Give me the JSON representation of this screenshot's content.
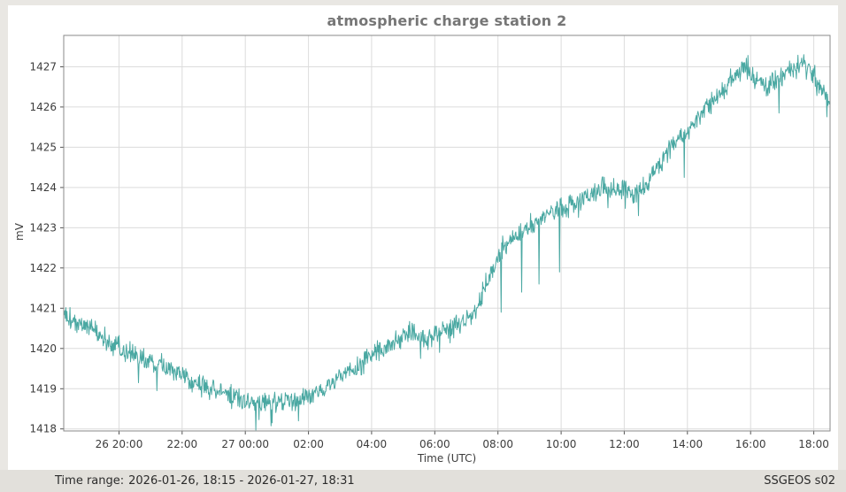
{
  "title": "atmospheric charge station 2",
  "status_bar": {
    "time_range_label": "Time range:",
    "time_range_value": "2026-01-26, 18:15 - 2026-01-27, 18:31",
    "station_id": "SSGEOS s02"
  },
  "colors": {
    "line": "#4aa8a2",
    "grid": "#dcdcdc",
    "frame": "#8a8a8a",
    "tick": "#555555",
    "tick_text": "#3c3c3c",
    "title_text": "#767676",
    "figure_bg": "#ffffff",
    "outer_bg": "#e9e7e3",
    "status_bar_bg": "#e2e0db"
  },
  "chart_data": {
    "type": "line",
    "title": "atmospheric charge station 2",
    "xlabel": "Time (UTC)",
    "ylabel": "mV",
    "grid": true,
    "legend": "none",
    "x_domain_hours": [
      18.25,
      42.5167
    ],
    "ylim": [
      1417.95,
      1427.78
    ],
    "yticks": [
      1418,
      1419,
      1420,
      1421,
      1422,
      1423,
      1424,
      1425,
      1426,
      1427
    ],
    "xticks": [
      {
        "hour": 20,
        "label": "26 20:00"
      },
      {
        "hour": 22,
        "label": "22:00"
      },
      {
        "hour": 24,
        "label": "27 00:00"
      },
      {
        "hour": 26,
        "label": "02:00"
      },
      {
        "hour": 28,
        "label": "04:00"
      },
      {
        "hour": 30,
        "label": "06:00"
      },
      {
        "hour": 32,
        "label": "08:00"
      },
      {
        "hour": 34,
        "label": "10:00"
      },
      {
        "hour": 36,
        "label": "12:00"
      },
      {
        "hour": 38,
        "label": "14:00"
      },
      {
        "hour": 40,
        "label": "16:00"
      },
      {
        "hour": 42,
        "label": "18:00"
      }
    ],
    "line_color": "#4aa8a2",
    "noise_amplitude_mV": 0.13,
    "sample_interval_minutes": 1,
    "trend_points": [
      {
        "t": "26 18:15",
        "hour": 18.25,
        "mV": 1420.9
      },
      {
        "t": "26 18:36",
        "hour": 18.6,
        "mV": 1420.65
      },
      {
        "t": "26 19:00",
        "hour": 19.0,
        "mV": 1420.55
      },
      {
        "t": "26 19:30",
        "hour": 19.5,
        "mV": 1420.3
      },
      {
        "t": "26 20:00",
        "hour": 20.0,
        "mV": 1420.0
      },
      {
        "t": "26 20:30",
        "hour": 20.5,
        "mV": 1419.85
      },
      {
        "t": "26 21:00",
        "hour": 21.0,
        "mV": 1419.6
      },
      {
        "t": "26 21:30",
        "hour": 21.5,
        "mV": 1419.5
      },
      {
        "t": "26 22:00",
        "hour": 22.0,
        "mV": 1419.35
      },
      {
        "t": "26 22:30",
        "hour": 22.5,
        "mV": 1419.15
      },
      {
        "t": "26 23:00",
        "hour": 23.0,
        "mV": 1418.95
      },
      {
        "t": "26 23:30",
        "hour": 23.5,
        "mV": 1418.85
      },
      {
        "t": "27 00:00",
        "hour": 24.0,
        "mV": 1418.75
      },
      {
        "t": "27 00:30",
        "hour": 24.5,
        "mV": 1418.7
      },
      {
        "t": "27 01:00",
        "hour": 25.0,
        "mV": 1418.68
      },
      {
        "t": "27 01:30",
        "hour": 25.5,
        "mV": 1418.72
      },
      {
        "t": "27 02:00",
        "hour": 26.0,
        "mV": 1418.85
      },
      {
        "t": "27 02:30",
        "hour": 26.5,
        "mV": 1419.05
      },
      {
        "t": "27 03:00",
        "hour": 27.0,
        "mV": 1419.3
      },
      {
        "t": "27 03:30",
        "hour": 27.5,
        "mV": 1419.5
      },
      {
        "t": "27 04:00",
        "hour": 28.0,
        "mV": 1419.9
      },
      {
        "t": "27 04:30",
        "hour": 28.5,
        "mV": 1420.1
      },
      {
        "t": "27 05:00",
        "hour": 29.0,
        "mV": 1420.3
      },
      {
        "t": "27 05:21",
        "hour": 29.35,
        "mV": 1420.45
      },
      {
        "t": "27 05:45",
        "hour": 29.75,
        "mV": 1420.15
      },
      {
        "t": "27 06:06",
        "hour": 30.1,
        "mV": 1420.4
      },
      {
        "t": "27 06:30",
        "hour": 30.5,
        "mV": 1420.55
      },
      {
        "t": "27 07:00",
        "hour": 31.0,
        "mV": 1420.65
      },
      {
        "t": "27 07:21",
        "hour": 31.35,
        "mV": 1421.05
      },
      {
        "t": "27 07:42",
        "hour": 31.7,
        "mV": 1421.7
      },
      {
        "t": "27 08:00",
        "hour": 32.0,
        "mV": 1422.3
      },
      {
        "t": "27 08:21",
        "hour": 32.35,
        "mV": 1422.7
      },
      {
        "t": "27 08:42",
        "hour": 32.7,
        "mV": 1422.85
      },
      {
        "t": "27 09:00",
        "hour": 33.0,
        "mV": 1423.0
      },
      {
        "t": "27 09:30",
        "hour": 33.5,
        "mV": 1423.3
      },
      {
        "t": "27 10:00",
        "hour": 34.0,
        "mV": 1423.5
      },
      {
        "t": "27 10:30",
        "hour": 34.5,
        "mV": 1423.6
      },
      {
        "t": "27 11:00",
        "hour": 35.0,
        "mV": 1423.9
      },
      {
        "t": "27 11:30",
        "hour": 35.5,
        "mV": 1424.0
      },
      {
        "t": "27 12:00",
        "hour": 36.0,
        "mV": 1423.95
      },
      {
        "t": "27 12:21",
        "hour": 36.35,
        "mV": 1423.85
      },
      {
        "t": "27 12:42",
        "hour": 36.7,
        "mV": 1424.1
      },
      {
        "t": "27 13:00",
        "hour": 37.0,
        "mV": 1424.45
      },
      {
        "t": "27 13:30",
        "hour": 37.5,
        "mV": 1425.0
      },
      {
        "t": "27 14:00",
        "hour": 38.0,
        "mV": 1425.4
      },
      {
        "t": "27 14:30",
        "hour": 38.5,
        "mV": 1425.95
      },
      {
        "t": "27 15:00",
        "hour": 39.0,
        "mV": 1426.3
      },
      {
        "t": "27 15:30",
        "hour": 39.5,
        "mV": 1426.8
      },
      {
        "t": "27 15:51",
        "hour": 39.85,
        "mV": 1427.0
      },
      {
        "t": "27 16:12",
        "hour": 40.2,
        "mV": 1426.65
      },
      {
        "t": "27 16:30",
        "hour": 40.5,
        "mV": 1426.5
      },
      {
        "t": "27 17:00",
        "hour": 41.0,
        "mV": 1426.75
      },
      {
        "t": "27 17:21",
        "hour": 41.35,
        "mV": 1426.9
      },
      {
        "t": "27 17:39",
        "hour": 41.65,
        "mV": 1427.15
      },
      {
        "t": "27 17:54",
        "hour": 41.9,
        "mV": 1427.0
      },
      {
        "t": "27 18:06",
        "hour": 42.1,
        "mV": 1426.6
      },
      {
        "t": "27 18:18",
        "hour": 42.3,
        "mV": 1426.35
      },
      {
        "t": "27 18:31",
        "hour": 42.52,
        "mV": 1426.1
      }
    ],
    "downward_spikes": [
      {
        "hour": 19.6,
        "mV": 1419.95
      },
      {
        "hour": 21.2,
        "mV": 1418.95
      },
      {
        "hour": 23.9,
        "mV": 1418.5
      },
      {
        "hour": 24.85,
        "mV": 1418.15
      },
      {
        "hour": 25.68,
        "mV": 1418.2
      },
      {
        "hour": 29.55,
        "mV": 1419.75
      },
      {
        "hour": 30.15,
        "mV": 1419.9
      },
      {
        "hour": 32.1,
        "mV": 1420.9
      },
      {
        "hour": 32.75,
        "mV": 1421.4
      },
      {
        "hour": 33.3,
        "mV": 1421.6
      },
      {
        "hour": 33.95,
        "mV": 1421.9
      },
      {
        "hour": 36.45,
        "mV": 1423.3
      },
      {
        "hour": 37.9,
        "mV": 1424.25
      },
      {
        "hour": 40.9,
        "mV": 1425.85
      }
    ]
  }
}
